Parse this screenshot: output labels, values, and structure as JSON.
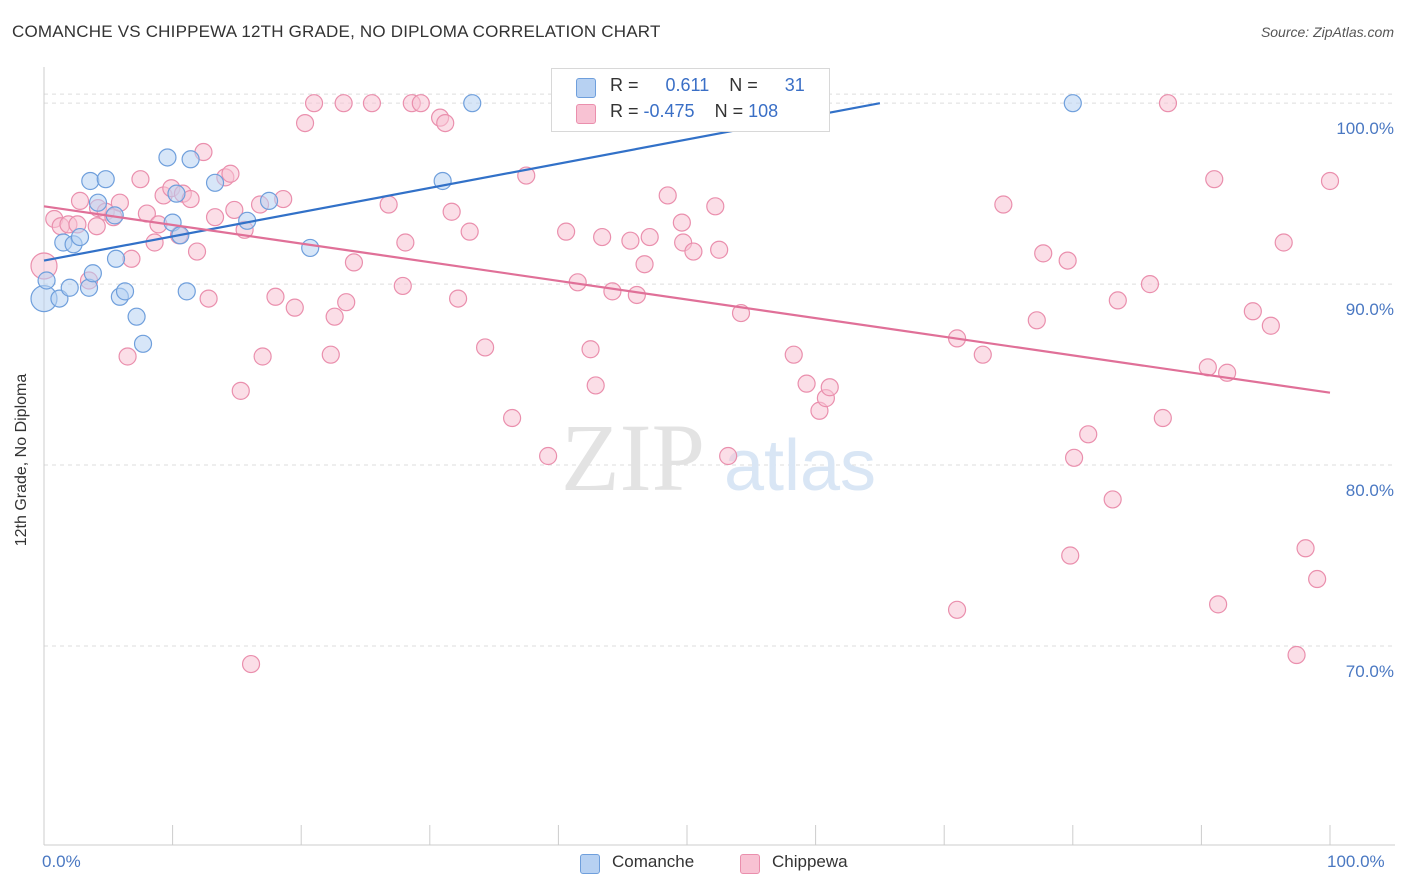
{
  "header": {
    "title": "COMANCHE VS CHIPPEWA 12TH GRADE, NO DIPLOMA CORRELATION CHART",
    "source": "Source: ZipAtlas.com"
  },
  "watermark": {
    "zip": "ZIP",
    "atlas": "atlas"
  },
  "colors": {
    "comanche_fill": "#b7d1f2",
    "comanche_stroke": "#6f9fdc",
    "comanche_line": "#3271c8",
    "chippewa_fill": "#f8c2d3",
    "chippewa_stroke": "#ea8fad",
    "chippewa_line": "#e07098",
    "tick_label": "#4a78c2",
    "grid": "#dddddd"
  },
  "legend_top": {
    "rows": [
      {
        "r_label": "R = ",
        "r_value": "0.611",
        "n_label": "N = ",
        "n_value": "31"
      },
      {
        "r_label": "R = ",
        "r_value": "-0.475",
        "n_label": "N = ",
        "n_value": "108"
      }
    ]
  },
  "legend_bottom": {
    "items": [
      "Comanche",
      "Chippewa"
    ]
  },
  "chart_data": {
    "type": "scatter",
    "title": "COMANCHE VS CHIPPEWA 12TH GRADE, NO DIPLOMA CORRELATION CHART",
    "xlabel": "",
    "ylabel": "12th Grade, No Diploma",
    "xlim": [
      0,
      100
    ],
    "ylim": [
      59,
      102
    ],
    "x_tick_labels": [
      "0.0%",
      "100.0%"
    ],
    "y_ticks": [
      70,
      80,
      90,
      100
    ],
    "y_tick_labels": [
      "70.0%",
      "80.0%",
      "90.0%",
      "100.0%"
    ],
    "grid": true,
    "legend_position": "top-center",
    "series": [
      {
        "name": "Comanche",
        "r": 0.611,
        "n": 31,
        "trend": {
          "x": [
            0,
            65
          ],
          "y": [
            91.3,
            100.0
          ]
        },
        "points": [
          [
            0.0,
            89.2
          ],
          [
            0.2,
            90.2
          ],
          [
            1.2,
            89.2
          ],
          [
            2.0,
            89.8
          ],
          [
            1.5,
            92.3
          ],
          [
            2.3,
            92.2
          ],
          [
            2.8,
            92.6
          ],
          [
            3.5,
            89.8
          ],
          [
            3.8,
            90.6
          ],
          [
            3.6,
            95.7
          ],
          [
            4.2,
            94.5
          ],
          [
            4.8,
            95.8
          ],
          [
            5.5,
            93.8
          ],
          [
            5.6,
            91.4
          ],
          [
            5.9,
            89.3
          ],
          [
            6.3,
            89.6
          ],
          [
            7.2,
            88.2
          ],
          [
            7.7,
            86.7
          ],
          [
            9.6,
            97.0
          ],
          [
            10.0,
            93.4
          ],
          [
            10.3,
            95.0
          ],
          [
            10.6,
            92.7
          ],
          [
            11.1,
            89.6
          ],
          [
            11.4,
            96.9
          ],
          [
            13.3,
            95.6
          ],
          [
            15.8,
            93.5
          ],
          [
            17.5,
            94.6
          ],
          [
            20.7,
            92.0
          ],
          [
            31.0,
            95.7
          ],
          [
            33.3,
            100.0
          ],
          [
            80.0,
            100.0
          ]
        ]
      },
      {
        "name": "Chippewa",
        "r": -0.475,
        "n": 108,
        "trend": {
          "x": [
            0,
            100
          ],
          "y": [
            94.3,
            84.0
          ]
        },
        "points": [
          [
            0.0,
            91.0
          ],
          [
            0.8,
            93.6
          ],
          [
            1.3,
            93.2
          ],
          [
            1.9,
            93.3
          ],
          [
            2.6,
            93.3
          ],
          [
            2.8,
            94.6
          ],
          [
            3.5,
            90.2
          ],
          [
            4.1,
            93.2
          ],
          [
            4.2,
            94.2
          ],
          [
            4.8,
            94.0
          ],
          [
            5.4,
            93.7
          ],
          [
            5.9,
            94.5
          ],
          [
            6.5,
            86.0
          ],
          [
            6.8,
            91.4
          ],
          [
            7.5,
            95.8
          ],
          [
            8.0,
            93.9
          ],
          [
            8.6,
            92.3
          ],
          [
            8.9,
            93.3
          ],
          [
            9.3,
            94.9
          ],
          [
            9.9,
            95.3
          ],
          [
            10.5,
            92.7
          ],
          [
            10.8,
            95.0
          ],
          [
            11.4,
            94.7
          ],
          [
            11.9,
            91.8
          ],
          [
            12.4,
            97.3
          ],
          [
            12.8,
            89.2
          ],
          [
            13.3,
            93.7
          ],
          [
            14.1,
            95.9
          ],
          [
            14.5,
            96.1
          ],
          [
            14.8,
            94.1
          ],
          [
            15.3,
            84.1
          ],
          [
            15.6,
            93.0
          ],
          [
            16.1,
            69.0
          ],
          [
            16.8,
            94.4
          ],
          [
            17.0,
            86.0
          ],
          [
            18.0,
            89.3
          ],
          [
            18.6,
            94.7
          ],
          [
            19.5,
            88.7
          ],
          [
            20.3,
            98.9
          ],
          [
            21.0,
            100.0
          ],
          [
            22.3,
            86.1
          ],
          [
            22.6,
            88.2
          ],
          [
            23.5,
            89.0
          ],
          [
            23.3,
            100.0
          ],
          [
            24.1,
            91.2
          ],
          [
            25.5,
            100.0
          ],
          [
            26.8,
            94.4
          ],
          [
            27.9,
            89.9
          ],
          [
            28.1,
            92.3
          ],
          [
            28.6,
            100.0
          ],
          [
            29.3,
            100.0
          ],
          [
            30.8,
            99.2
          ],
          [
            31.2,
            98.9
          ],
          [
            31.7,
            94.0
          ],
          [
            32.2,
            89.2
          ],
          [
            33.1,
            92.9
          ],
          [
            34.3,
            86.5
          ],
          [
            36.4,
            82.6
          ],
          [
            37.5,
            96.0
          ],
          [
            39.2,
            80.5
          ],
          [
            40.6,
            92.9
          ],
          [
            41.5,
            90.1
          ],
          [
            42.5,
            86.4
          ],
          [
            42.9,
            84.4
          ],
          [
            43.4,
            92.6
          ],
          [
            44.2,
            89.6
          ],
          [
            45.6,
            92.4
          ],
          [
            46.1,
            89.4
          ],
          [
            46.7,
            91.1
          ],
          [
            47.1,
            92.6
          ],
          [
            48.5,
            94.9
          ],
          [
            49.6,
            93.4
          ],
          [
            49.7,
            92.3
          ],
          [
            50.5,
            91.8
          ],
          [
            52.2,
            94.3
          ],
          [
            52.5,
            91.9
          ],
          [
            53.2,
            80.5
          ],
          [
            54.2,
            88.4
          ],
          [
            58.3,
            86.1
          ],
          [
            59.3,
            84.5
          ],
          [
            60.3,
            83.0
          ],
          [
            60.8,
            83.7
          ],
          [
            61.1,
            84.3
          ],
          [
            71.0,
            87.0
          ],
          [
            71.0,
            72.0
          ],
          [
            73.0,
            86.1
          ],
          [
            74.6,
            94.4
          ],
          [
            77.2,
            88.0
          ],
          [
            77.7,
            91.7
          ],
          [
            79.6,
            91.3
          ],
          [
            80.1,
            80.4
          ],
          [
            79.8,
            75.0
          ],
          [
            81.2,
            81.7
          ],
          [
            83.1,
            78.1
          ],
          [
            83.5,
            89.1
          ],
          [
            86.0,
            90.0
          ],
          [
            87.0,
            82.6
          ],
          [
            87.4,
            100.0
          ],
          [
            90.5,
            85.4
          ],
          [
            91.0,
            95.8
          ],
          [
            91.3,
            72.3
          ],
          [
            92.0,
            85.1
          ],
          [
            94.0,
            88.5
          ],
          [
            95.4,
            87.7
          ],
          [
            96.4,
            92.3
          ],
          [
            97.4,
            69.5
          ],
          [
            98.1,
            75.4
          ],
          [
            99.0,
            73.7
          ],
          [
            100.0,
            95.7
          ]
        ]
      }
    ]
  }
}
